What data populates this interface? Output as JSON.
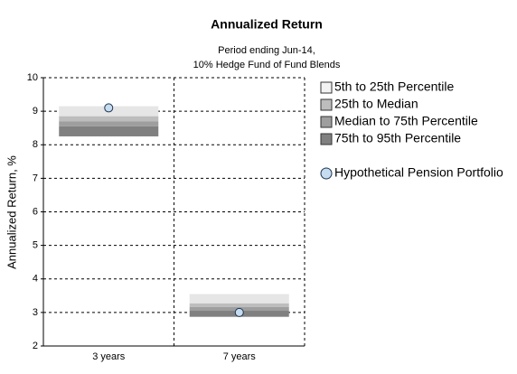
{
  "chart_data": {
    "type": "floating-bar",
    "title": "Annualized Return",
    "subtitle": [
      "Period ending Jun-14,",
      "10% Hedge Fund of Fund Blends"
    ],
    "y_label": "Annualized Return, %",
    "categories": [
      "3 years",
      "7 years"
    ],
    "ylim": [
      2,
      10
    ],
    "yticks": [
      2,
      3,
      4,
      5,
      6,
      7,
      8,
      9,
      10
    ],
    "grid": true,
    "series": [
      {
        "name": "5th to 25th Percentile",
        "color": "#e6e6e6",
        "values": [
          [
            9.15,
            8.85
          ],
          [
            3.55,
            3.27
          ]
        ]
      },
      {
        "name": "25th to Median",
        "color": "#bdbdbd",
        "values": [
          [
            8.85,
            8.7
          ],
          [
            3.27,
            3.16
          ]
        ]
      },
      {
        "name": "Median to 75th Percentile",
        "color": "#9e9e9e",
        "values": [
          [
            8.7,
            8.55
          ],
          [
            3.16,
            3.05
          ]
        ]
      },
      {
        "name": "75th to 95th Percentile",
        "color": "#808080",
        "values": [
          [
            8.55,
            8.25
          ],
          [
            3.05,
            2.87
          ]
        ]
      }
    ],
    "points": {
      "name": "Hypothetical Pension Portfolio",
      "color": "#c6dcf0",
      "values": [
        9.1,
        3.0
      ]
    }
  }
}
